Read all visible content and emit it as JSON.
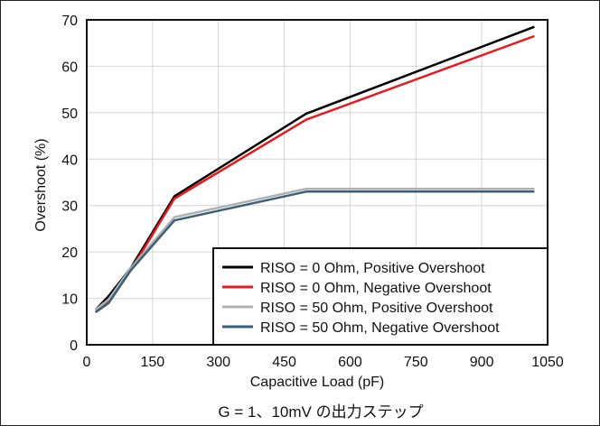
{
  "chart_data": {
    "type": "line",
    "xlabel": "Capacitive Load (pF)",
    "ylabel": "Overshoot (%)",
    "caption": "G = 1、10mV の出力ステップ",
    "xlim": [
      0,
      1050
    ],
    "ylim": [
      0,
      70
    ],
    "xticks": [
      0,
      150,
      300,
      450,
      600,
      750,
      900,
      1050
    ],
    "yticks": [
      0,
      10,
      20,
      30,
      40,
      50,
      60,
      70
    ],
    "grid": true,
    "legend_position": "bottom-right",
    "series": [
      {
        "name": "RISO = 0 Ohm, Positive Overshoot",
        "color": "#000000",
        "x": [
          20,
          50,
          100,
          200,
          500,
          1020
        ],
        "y": [
          7.5,
          10.5,
          16.5,
          32,
          49.8,
          68.5
        ]
      },
      {
        "name": "RISO = 0 Ohm, Negative Overshoot",
        "color": "#e41a1c",
        "x": [
          20,
          50,
          100,
          200,
          500,
          1020
        ],
        "y": [
          7.0,
          9.5,
          16.0,
          31.5,
          48.5,
          66.5
        ]
      },
      {
        "name": "RISO = 50 Ohm, Positive Overshoot",
        "color": "#b0b0b0",
        "x": [
          20,
          50,
          100,
          200,
          500,
          1020
        ],
        "y": [
          7.5,
          9.8,
          16.5,
          27.5,
          33.6,
          33.6
        ]
      },
      {
        "name": "RISO = 50 Ohm, Negative Overshoot",
        "color": "#3a5f78",
        "x": [
          20,
          50,
          100,
          200,
          500,
          1020
        ],
        "y": [
          7.0,
          9.0,
          16.0,
          26.8,
          33.0,
          33.0
        ]
      }
    ]
  }
}
